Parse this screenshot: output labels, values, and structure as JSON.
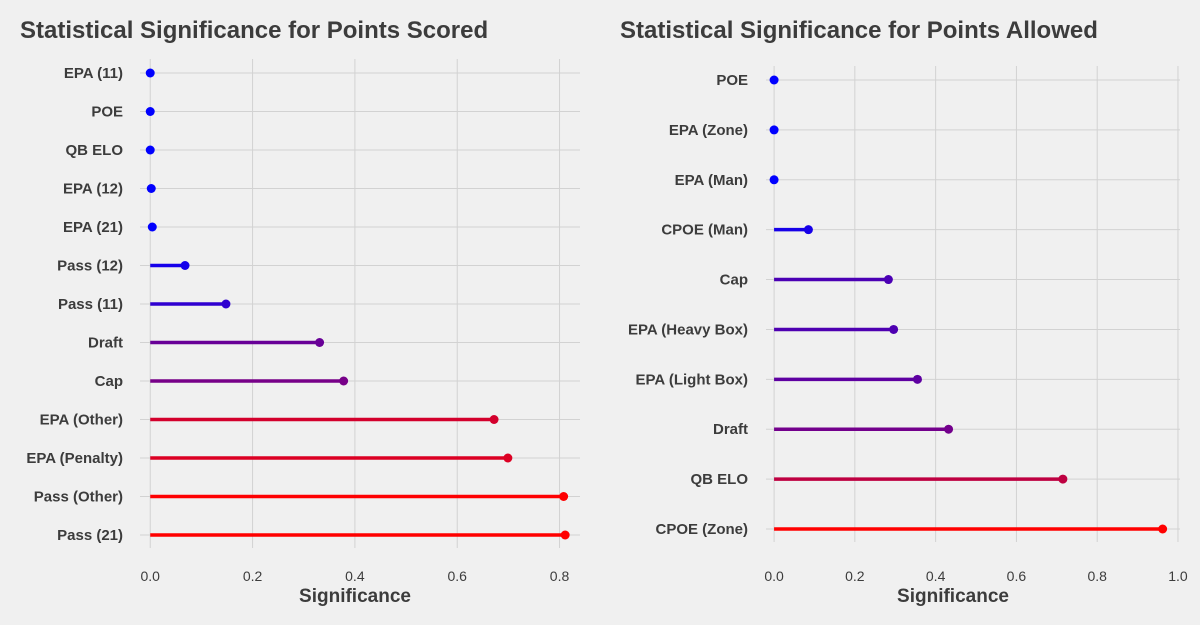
{
  "chart_data": [
    {
      "type": "lollipop",
      "title": "Statistical Significance for Points Scored",
      "xlabel": "Significance",
      "xlim": [
        -0.02,
        0.84
      ],
      "xticks": [
        0.0,
        0.2,
        0.4,
        0.6,
        0.8
      ],
      "xtick_labels": [
        "0.0",
        "0.2",
        "0.4",
        "0.6",
        "0.8"
      ],
      "grid": true,
      "color_scale": [
        "#0000ff",
        "#ff0000"
      ],
      "categories": [
        "EPA (11)",
        "POE",
        "QB ELO",
        "EPA (12)",
        "EPA (21)",
        "Pass (12)",
        "Pass (11)",
        "Draft",
        "Cap",
        "EPA (Other)",
        "EPA (Penalty)",
        "Pass (Other)",
        "Pass (21)"
      ],
      "values": [
        0.0,
        0.0,
        0.0,
        0.002,
        0.004,
        0.068,
        0.148,
        0.331,
        0.378,
        0.672,
        0.699,
        0.808,
        0.811
      ]
    },
    {
      "type": "lollipop",
      "title": "Statistical Significance for Points Allowed",
      "xlabel": "Significance",
      "xlim": [
        -0.02,
        1.005
      ],
      "xticks": [
        0.0,
        0.2,
        0.4,
        0.6,
        0.8,
        1.0
      ],
      "xtick_labels": [
        "0.0",
        "0.2",
        "0.4",
        "0.6",
        "0.8",
        "1.0"
      ],
      "grid": true,
      "color_scale": [
        "#0000ff",
        "#ff0000"
      ],
      "categories": [
        "POE",
        "EPA (Zone)",
        "EPA (Man)",
        "CPOE (Man)",
        "Cap",
        "EPA (Heavy Box)",
        "EPA (Light Box)",
        "Draft",
        "QB ELO",
        "CPOE (Zone)"
      ],
      "values": [
        0.0,
        0.0,
        0.0,
        0.085,
        0.283,
        0.296,
        0.355,
        0.432,
        0.715,
        0.962
      ]
    }
  ]
}
